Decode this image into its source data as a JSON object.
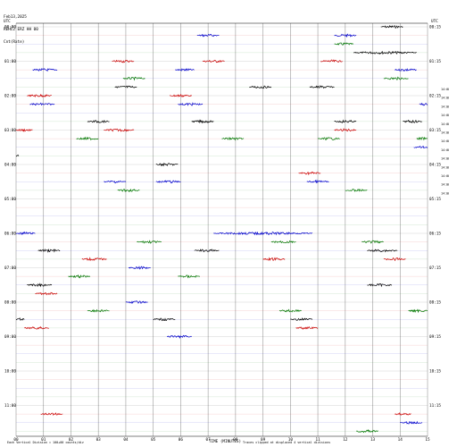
{
  "header": {
    "line1": "Feb13,2025",
    "line2": "REHC2 ERZ HH 00",
    "line3": "Cnt(Rate)"
  },
  "colors": {
    "grid": "#9a9a9a",
    "trace_cycle": [
      "#000000",
      "#cc0000",
      "#0000cc",
      "#007700"
    ]
  },
  "chart_data": {
    "type": "helicorder",
    "title": "",
    "xlabel": "TIME (MINUTES)",
    "x_ticks": [
      "00",
      "01",
      "02",
      "03",
      "04",
      "05",
      "06",
      "07",
      "08",
      "09",
      "10",
      "11",
      "12",
      "13",
      "14",
      "15"
    ],
    "xlim": [
      0,
      15
    ],
    "left_axis_label": "UTC",
    "right_axis_label": "UTC",
    "left_row_labels": [
      "00:00",
      "01:00",
      "02:00",
      "03:00",
      "04:00",
      "05:00",
      "06:00",
      "07:00",
      "08:00",
      "09:00",
      "10:00",
      "11:00"
    ],
    "right_row_labels": [
      "00:15",
      "01:15",
      "02:15",
      "03:15",
      "04:15",
      "05:15",
      "06:15",
      "07:15",
      "08:15",
      "09:15",
      "10:15",
      "11:15"
    ],
    "right_side_notes": [
      "14:00",
      "14:00",
      "14:00",
      "14:00",
      "14:00",
      "14:00",
      "14:00",
      "14:00",
      "14:00",
      "14:00",
      "14:00",
      "14:00",
      "14:00"
    ],
    "rows_per_hour": 4,
    "footer_left": "Each Vertical Division = 100+00 counts/div",
    "footer_right": "Traces clipped at displaced 4 vertical divisions",
    "events": [
      {
        "row": 0,
        "x0": 13.3,
        "x1": 14.1,
        "color": "black"
      },
      {
        "row": 1,
        "x0": 6.6,
        "x1": 7.4,
        "color": "blue"
      },
      {
        "row": 1,
        "x0": 11.6,
        "x1": 12.4,
        "color": "blue"
      },
      {
        "row": 2,
        "x0": 11.6,
        "x1": 12.3,
        "color": "green"
      },
      {
        "row": 3,
        "x0": 12.3,
        "x1": 14.6,
        "color": "black"
      },
      {
        "row": 4,
        "x0": 3.5,
        "x1": 4.3,
        "color": "red"
      },
      {
        "row": 4,
        "x0": 6.8,
        "x1": 7.6,
        "color": "red"
      },
      {
        "row": 4,
        "x0": 11.1,
        "x1": 11.9,
        "color": "red"
      },
      {
        "row": 5,
        "x0": 0.6,
        "x1": 1.5,
        "color": "blue"
      },
      {
        "row": 5,
        "x0": 5.8,
        "x1": 6.5,
        "color": "blue"
      },
      {
        "row": 5,
        "x0": 13.8,
        "x1": 14.6,
        "color": "blue"
      },
      {
        "row": 6,
        "x0": 3.9,
        "x1": 4.7,
        "color": "green"
      },
      {
        "row": 6,
        "x0": 13.4,
        "x1": 14.3,
        "color": "green"
      },
      {
        "row": 7,
        "x0": 3.6,
        "x1": 4.4,
        "color": "black"
      },
      {
        "row": 7,
        "x0": 8.5,
        "x1": 9.3,
        "color": "black"
      },
      {
        "row": 7,
        "x0": 10.7,
        "x1": 11.6,
        "color": "black"
      },
      {
        "row": 8,
        "x0": 0.4,
        "x1": 1.3,
        "color": "red"
      },
      {
        "row": 8,
        "x0": 5.6,
        "x1": 6.4,
        "color": "red"
      },
      {
        "row": 9,
        "x0": 0.5,
        "x1": 1.4,
        "color": "blue"
      },
      {
        "row": 9,
        "x0": 5.9,
        "x1": 6.8,
        "color": "blue"
      },
      {
        "row": 9,
        "x0": 14.7,
        "x1": 15.0,
        "color": "blue"
      },
      {
        "row": 11,
        "x0": 2.6,
        "x1": 3.4,
        "color": "black"
      },
      {
        "row": 11,
        "x0": 6.4,
        "x1": 7.2,
        "color": "black"
      },
      {
        "row": 11,
        "x0": 11.6,
        "x1": 12.4,
        "color": "black"
      },
      {
        "row": 11,
        "x0": 14.1,
        "x1": 14.8,
        "color": "black"
      },
      {
        "row": 12,
        "x0": 0.0,
        "x1": 0.6,
        "color": "red"
      },
      {
        "row": 12,
        "x0": 3.2,
        "x1": 4.3,
        "color": "red"
      },
      {
        "row": 12,
        "x0": 11.6,
        "x1": 12.4,
        "color": "red"
      },
      {
        "row": 13,
        "x0": 2.2,
        "x1": 3.0,
        "color": "green"
      },
      {
        "row": 13,
        "x0": 7.5,
        "x1": 8.3,
        "color": "green"
      },
      {
        "row": 13,
        "x0": 11.0,
        "x1": 11.8,
        "color": "green"
      },
      {
        "row": 13,
        "x0": 14.6,
        "x1": 15.0,
        "color": "green"
      },
      {
        "row": 14,
        "x0": 14.5,
        "x1": 15.0,
        "color": "blue"
      },
      {
        "row": 15,
        "x0": 0.0,
        "x1": 0.1,
        "color": "black"
      },
      {
        "row": 16,
        "x0": 5.1,
        "x1": 5.9,
        "color": "black"
      },
      {
        "row": 17,
        "x0": 10.3,
        "x1": 11.1,
        "color": "red"
      },
      {
        "row": 18,
        "x0": 3.2,
        "x1": 4.0,
        "color": "blue"
      },
      {
        "row": 18,
        "x0": 5.1,
        "x1": 6.0,
        "color": "blue"
      },
      {
        "row": 18,
        "x0": 10.6,
        "x1": 11.4,
        "color": "blue"
      },
      {
        "row": 19,
        "x0": 3.7,
        "x1": 4.5,
        "color": "green"
      },
      {
        "row": 19,
        "x0": 12.0,
        "x1": 12.8,
        "color": "green"
      },
      {
        "row": 24,
        "x0": 0.0,
        "x1": 0.7,
        "color": "blue"
      },
      {
        "row": 24,
        "x0": 7.2,
        "x1": 10.8,
        "color": "blue"
      },
      {
        "row": 25,
        "x0": 4.4,
        "x1": 5.3,
        "color": "green"
      },
      {
        "row": 25,
        "x0": 9.3,
        "x1": 10.2,
        "color": "green"
      },
      {
        "row": 25,
        "x0": 12.6,
        "x1": 13.4,
        "color": "green"
      },
      {
        "row": 26,
        "x0": 0.8,
        "x1": 1.6,
        "color": "black"
      },
      {
        "row": 26,
        "x0": 6.5,
        "x1": 7.4,
        "color": "black"
      },
      {
        "row": 26,
        "x0": 12.8,
        "x1": 13.9,
        "color": "black"
      },
      {
        "row": 27,
        "x0": 2.4,
        "x1": 3.3,
        "color": "red"
      },
      {
        "row": 27,
        "x0": 9.0,
        "x1": 9.8,
        "color": "red"
      },
      {
        "row": 27,
        "x0": 13.4,
        "x1": 14.2,
        "color": "red"
      },
      {
        "row": 28,
        "x0": 4.1,
        "x1": 4.9,
        "color": "blue"
      },
      {
        "row": 29,
        "x0": 1.9,
        "x1": 2.7,
        "color": "green"
      },
      {
        "row": 29,
        "x0": 5.9,
        "x1": 6.7,
        "color": "green"
      },
      {
        "row": 30,
        "x0": 0.4,
        "x1": 1.3,
        "color": "black"
      },
      {
        "row": 30,
        "x0": 12.8,
        "x1": 13.7,
        "color": "black"
      },
      {
        "row": 31,
        "x0": 0.7,
        "x1": 1.5,
        "color": "red"
      },
      {
        "row": 32,
        "x0": 4.0,
        "x1": 4.8,
        "color": "blue"
      },
      {
        "row": 33,
        "x0": 2.6,
        "x1": 3.4,
        "color": "green"
      },
      {
        "row": 33,
        "x0": 9.6,
        "x1": 10.4,
        "color": "green"
      },
      {
        "row": 33,
        "x0": 14.3,
        "x1": 15.0,
        "color": "green"
      },
      {
        "row": 34,
        "x0": 0.0,
        "x1": 0.3,
        "color": "black"
      },
      {
        "row": 34,
        "x0": 5.0,
        "x1": 5.8,
        "color": "black"
      },
      {
        "row": 34,
        "x0": 10.0,
        "x1": 10.8,
        "color": "black"
      },
      {
        "row": 35,
        "x0": 0.3,
        "x1": 1.2,
        "color": "red"
      },
      {
        "row": 35,
        "x0": 10.2,
        "x1": 11.0,
        "color": "red"
      },
      {
        "row": 36,
        "x0": 5.5,
        "x1": 6.4,
        "color": "blue"
      },
      {
        "row": 45,
        "x0": 0.9,
        "x1": 1.7,
        "color": "red"
      },
      {
        "row": 45,
        "x0": 13.8,
        "x1": 14.4,
        "color": "red"
      },
      {
        "row": 46,
        "x0": 14.0,
        "x1": 14.8,
        "color": "blue"
      },
      {
        "row": 47,
        "x0": 12.4,
        "x1": 13.2,
        "color": "green"
      }
    ]
  }
}
